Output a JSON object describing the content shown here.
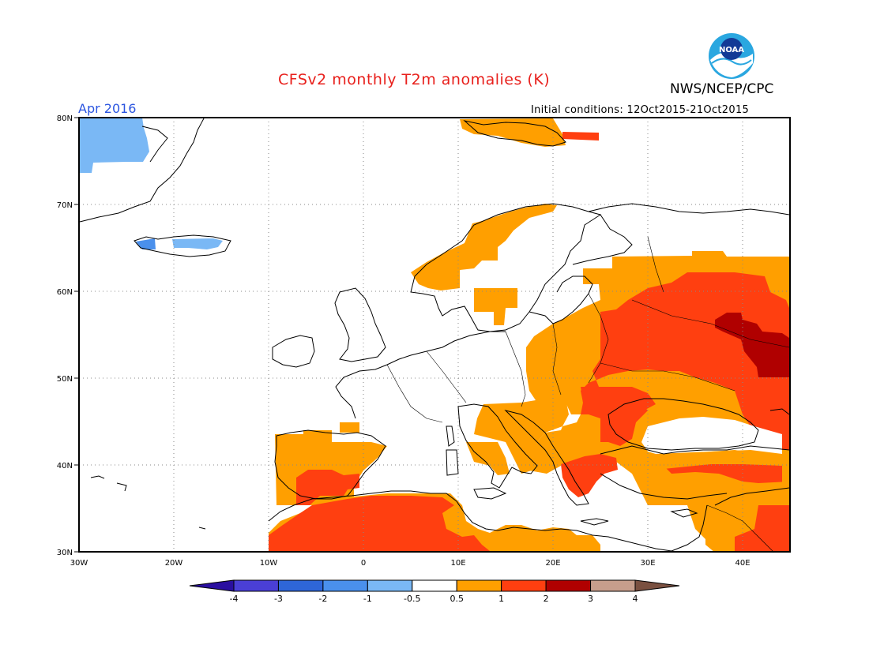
{
  "title": "CFSv2 monthly T2m anomalies (K)",
  "organization": "NWS/NCEP/CPC",
  "logo_text": "NOAA",
  "valid_month": "Apr 2016",
  "initial_conditions": "Initial conditions: 12Oct2015-21Oct2015",
  "map": {
    "lat_labels": [
      "80N",
      "70N",
      "60N",
      "50N",
      "40N",
      "30N"
    ],
    "lon_labels": [
      "30W",
      "20W",
      "10W",
      "0",
      "10E",
      "20E",
      "30E",
      "40E"
    ],
    "extent": {
      "lon_min": -30,
      "lon_max": 45,
      "lat_min": 30,
      "lat_max": 80
    }
  },
  "colorbar": {
    "levels": [
      "-4",
      "-3",
      "-2",
      "-1",
      "-0.5",
      "0.5",
      "1",
      "2",
      "3",
      "4"
    ],
    "colors": [
      "#2a0fa0",
      "#4a3fd6",
      "#2e66d8",
      "#4a90ec",
      "#7ab8f5",
      "#ffffff",
      "#ff9f00",
      "#ff3f10",
      "#b00000",
      "#c79e8c",
      "#7a5040"
    ]
  }
}
